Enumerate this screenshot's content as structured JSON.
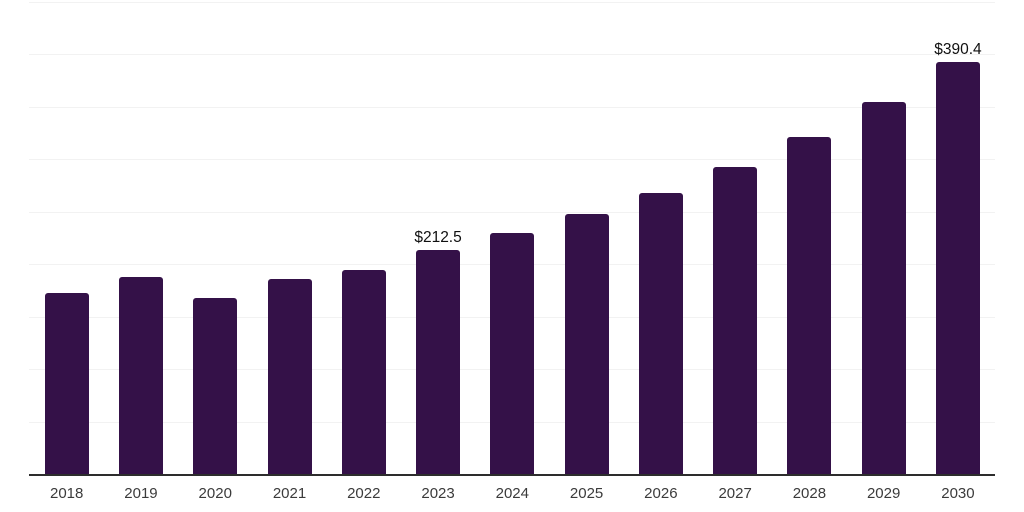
{
  "chart_data": {
    "type": "bar",
    "title": "",
    "xlabel": "",
    "ylabel": "",
    "categories": [
      "2018",
      "2019",
      "2020",
      "2021",
      "2022",
      "2023",
      "2024",
      "2025",
      "2026",
      "2027",
      "2028",
      "2029",
      "2030"
    ],
    "values": [
      171.5,
      186.5,
      166.5,
      185,
      193.5,
      212.5,
      228.5,
      246.5,
      266,
      291,
      319.5,
      352,
      390.4
    ],
    "data_labels": [
      "",
      "",
      "",
      "",
      "",
      "$212.5",
      "",
      "",
      "",
      "",
      "",
      "",
      "$390.4"
    ],
    "ylim": [
      0,
      446
    ],
    "y_tick_labels_visible": false,
    "grid": "horizontal",
    "gridline_rows": 9,
    "legend": "none",
    "bar_color": "#341148",
    "gridline_color": "#f2f2f2",
    "axis_line_color": "#2d2d2d",
    "tick_label_color": "#3b3b3b",
    "data_label_color": "#101010",
    "background_color": "#ffffff"
  }
}
